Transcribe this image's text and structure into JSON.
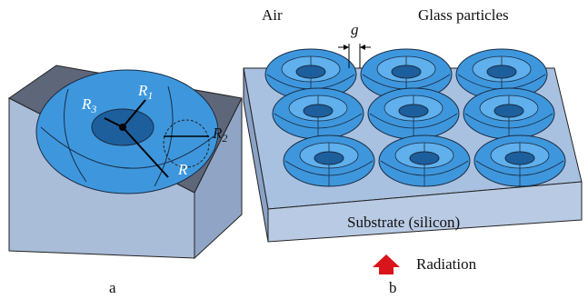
{
  "panel_a": {
    "caption": "a",
    "labels": [
      {
        "symbol": "R",
        "sub": "3"
      },
      {
        "symbol": "R",
        "sub": "1"
      },
      {
        "symbol": "R",
        "sub": "2"
      },
      {
        "symbol": "R"
      }
    ]
  },
  "panel_b": {
    "caption": "b",
    "air": "Air",
    "gap": "g",
    "particles": "Glass particles",
    "substrate": "Substrate (silicon)",
    "radiation": "Radiation"
  }
}
